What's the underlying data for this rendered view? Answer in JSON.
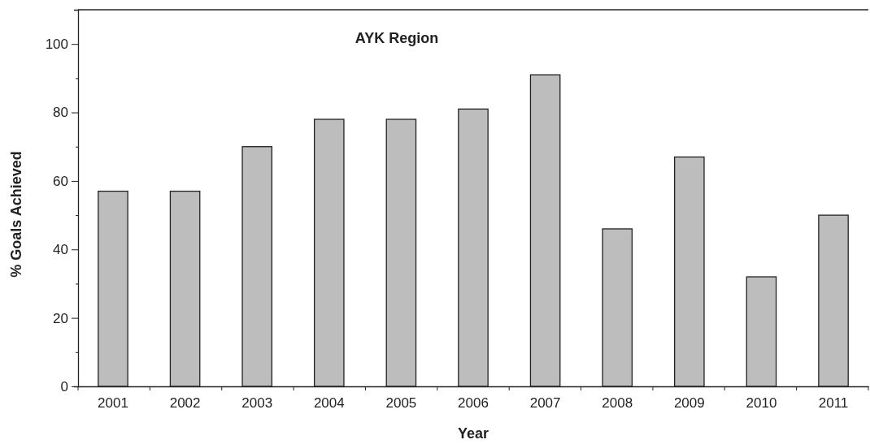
{
  "chart_data": {
    "type": "bar",
    "title": "AYK Region",
    "xlabel": "Year",
    "ylabel": "% Goals Achieved",
    "categories": [
      "2001",
      "2002",
      "2003",
      "2004",
      "2005",
      "2006",
      "2007",
      "2008",
      "2009",
      "2010",
      "2011"
    ],
    "values": [
      57,
      57,
      70,
      78,
      78,
      81,
      91,
      46,
      67,
      32,
      50
    ],
    "color": "#bdbdbd",
    "ylim": [
      0,
      110
    ],
    "yticks": [
      0,
      {
        "value": 10,
        "label": null
      },
      20,
      {
        "value": 30,
        "label": null
      },
      40,
      {
        "value": 50,
        "label": null
      },
      60,
      {
        "value": 70,
        "label": null
      },
      80,
      {
        "value": 90,
        "label": null
      },
      100
    ],
    "grid": false
  }
}
